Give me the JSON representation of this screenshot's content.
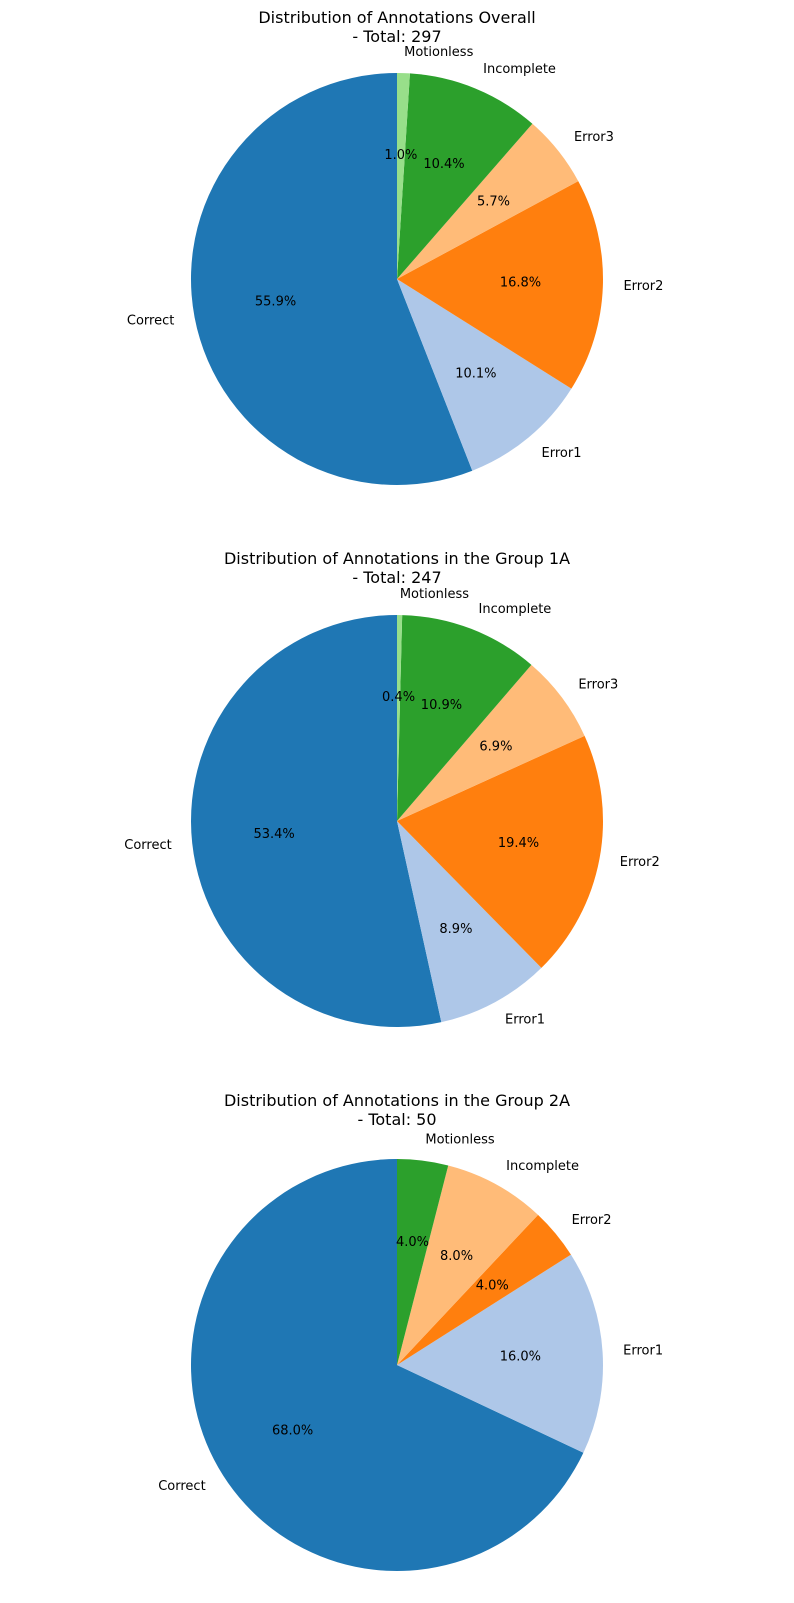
{
  "chart_data": [
    {
      "type": "pie",
      "title": "Distribution of Annotations Overall",
      "subtitle": "- Total: 297",
      "start_angle_deg": 90,
      "direction": "counterclockwise",
      "slices": [
        {
          "label": "Correct",
          "value": 55.9,
          "pct_label": "55.9%",
          "color": "#1f77b4"
        },
        {
          "label": "Error1",
          "value": 10.1,
          "pct_label": "10.1%",
          "color": "#aec7e8"
        },
        {
          "label": "Error2",
          "value": 16.8,
          "pct_label": "16.8%",
          "color": "#ff7f0e"
        },
        {
          "label": "Error3",
          "value": 5.7,
          "pct_label": "5.7%",
          "color": "#ffbb78"
        },
        {
          "label": "Incomplete",
          "value": 10.4,
          "pct_label": "10.4%",
          "color": "#2ca02c"
        },
        {
          "label": "Motionless",
          "value": 1.0,
          "pct_label": "1.0%",
          "color": "#98df8a"
        }
      ]
    },
    {
      "type": "pie",
      "title": "Distribution of Annotations in the Group 1A",
      "subtitle": "- Total: 247",
      "start_angle_deg": 90,
      "direction": "counterclockwise",
      "slices": [
        {
          "label": "Correct",
          "value": 53.4,
          "pct_label": "53.4%",
          "color": "#1f77b4"
        },
        {
          "label": "Error1",
          "value": 8.9,
          "pct_label": "8.9%",
          "color": "#aec7e8"
        },
        {
          "label": "Error2",
          "value": 19.4,
          "pct_label": "19.4%",
          "color": "#ff7f0e"
        },
        {
          "label": "Error3",
          "value": 6.9,
          "pct_label": "6.9%",
          "color": "#ffbb78"
        },
        {
          "label": "Incomplete",
          "value": 10.9,
          "pct_label": "10.9%",
          "color": "#2ca02c"
        },
        {
          "label": "Motionless",
          "value": 0.4,
          "pct_label": "0.4%",
          "color": "#98df8a"
        }
      ]
    },
    {
      "type": "pie",
      "title": "Distribution of Annotations in the Group 2A",
      "subtitle": "- Total: 50",
      "start_angle_deg": 90,
      "direction": "counterclockwise",
      "slices": [
        {
          "label": "Correct",
          "value": 68.0,
          "pct_label": "68.0%",
          "color": "#1f77b4"
        },
        {
          "label": "Error1",
          "value": 16.0,
          "pct_label": "16.0%",
          "color": "#aec7e8"
        },
        {
          "label": "Error2",
          "value": 4.0,
          "pct_label": "4.0%",
          "color": "#ff7f0e"
        },
        {
          "label": "Incomplete",
          "value": 8.0,
          "pct_label": "8.0%",
          "color": "#ffbb78"
        },
        {
          "label": "Motionless",
          "value": 4.0,
          "pct_label": "4.0%",
          "color": "#2ca02c"
        }
      ]
    }
  ]
}
